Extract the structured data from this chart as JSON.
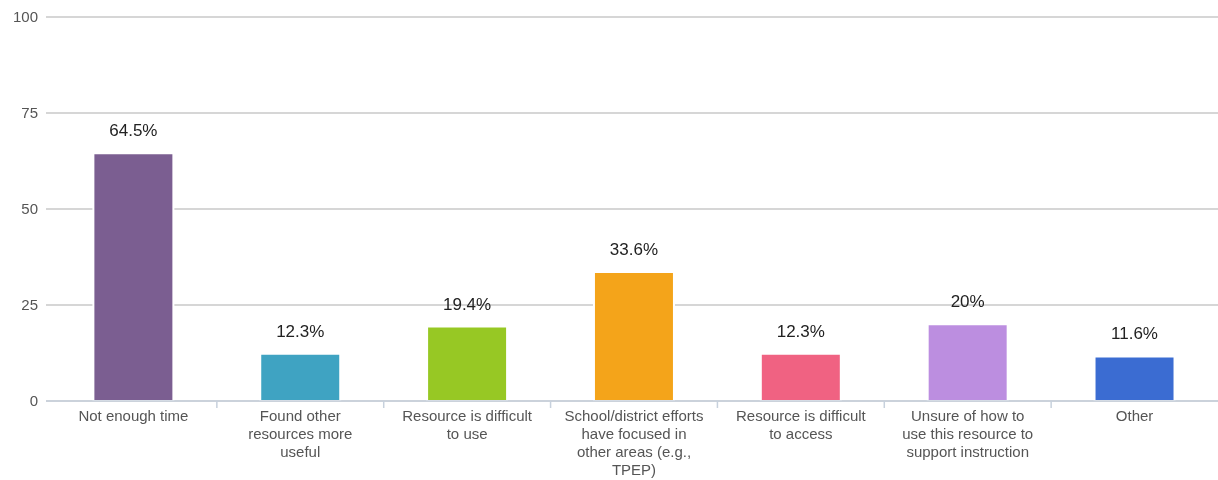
{
  "chart_data": {
    "type": "bar",
    "categories": [
      "Not enough time",
      "Found other resources more useful",
      "Resource is difficult to use",
      "School/district efforts have focused in other areas (e.g., TPEP)",
      "Resource is difficult to access",
      "Unsure of how to use this resource to support instruction",
      "Other"
    ],
    "values": [
      64.5,
      12.3,
      19.4,
      33.6,
      12.3,
      20,
      11.6
    ],
    "colors": [
      "#7b5e91",
      "#3fa3c2",
      "#97c824",
      "#f4a41a",
      "#f06282",
      "#bc8ee0",
      "#3b6cd2"
    ],
    "value_labels": [
      "64.5%",
      "12.3%",
      "19.4%",
      "33.6%",
      "12.3%",
      "20%",
      "11.6%"
    ],
    "ylim": [
      0,
      100
    ],
    "yticks": [
      0,
      25,
      50,
      75,
      100
    ],
    "grid": "y"
  }
}
